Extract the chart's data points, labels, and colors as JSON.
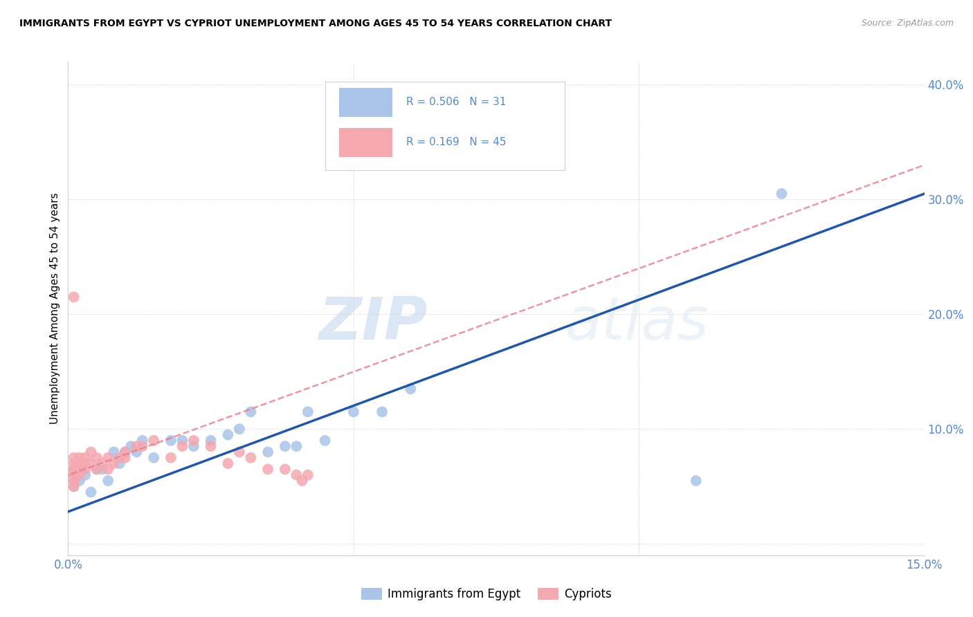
{
  "title": "IMMIGRANTS FROM EGYPT VS CYPRIOT UNEMPLOYMENT AMONG AGES 45 TO 54 YEARS CORRELATION CHART",
  "source": "Source: ZipAtlas.com",
  "tick_color": "#5588cc",
  "ylabel": "Unemployment Among Ages 45 to 54 years",
  "xlim": [
    0.0,
    0.15
  ],
  "ylim": [
    -0.01,
    0.42
  ],
  "legend_R_blue": "0.506",
  "legend_N_blue": "31",
  "legend_R_pink": "0.169",
  "legend_N_pink": "45",
  "blue_color": "#aac4e8",
  "pink_color": "#f4a8b0",
  "blue_line_color": "#2255aa",
  "pink_line_color": "#e87a8a",
  "watermark_zip": "ZIP",
  "watermark_atlas": "atlas",
  "blue_scatter_x": [
    0.001,
    0.002,
    0.003,
    0.004,
    0.005,
    0.006,
    0.007,
    0.008,
    0.009,
    0.01,
    0.011,
    0.012,
    0.013,
    0.015,
    0.018,
    0.02,
    0.022,
    0.025,
    0.028,
    0.03,
    0.032,
    0.035,
    0.038,
    0.04,
    0.042,
    0.045,
    0.05,
    0.055,
    0.06,
    0.11,
    0.125
  ],
  "blue_scatter_y": [
    0.05,
    0.055,
    0.06,
    0.045,
    0.065,
    0.065,
    0.055,
    0.08,
    0.07,
    0.08,
    0.085,
    0.08,
    0.09,
    0.075,
    0.09,
    0.09,
    0.085,
    0.09,
    0.095,
    0.1,
    0.115,
    0.08,
    0.085,
    0.085,
    0.115,
    0.09,
    0.115,
    0.115,
    0.135,
    0.055,
    0.305
  ],
  "pink_scatter_x": [
    0.001,
    0.001,
    0.001,
    0.001,
    0.001,
    0.001,
    0.001,
    0.001,
    0.001,
    0.001,
    0.002,
    0.002,
    0.002,
    0.002,
    0.002,
    0.003,
    0.003,
    0.003,
    0.004,
    0.004,
    0.005,
    0.005,
    0.006,
    0.007,
    0.007,
    0.008,
    0.009,
    0.01,
    0.01,
    0.012,
    0.013,
    0.015,
    0.018,
    0.02,
    0.022,
    0.025,
    0.028,
    0.03,
    0.032,
    0.035,
    0.038,
    0.04,
    0.041,
    0.042,
    0.001
  ],
  "pink_scatter_y": [
    0.055,
    0.06,
    0.065,
    0.07,
    0.075,
    0.065,
    0.06,
    0.055,
    0.05,
    0.06,
    0.065,
    0.07,
    0.075,
    0.065,
    0.06,
    0.07,
    0.075,
    0.065,
    0.08,
    0.07,
    0.075,
    0.065,
    0.07,
    0.075,
    0.065,
    0.07,
    0.075,
    0.08,
    0.075,
    0.085,
    0.085,
    0.09,
    0.075,
    0.085,
    0.09,
    0.085,
    0.07,
    0.08,
    0.075,
    0.065,
    0.065,
    0.06,
    0.055,
    0.06,
    0.215
  ],
  "blue_trendline_x": [
    0.0,
    0.15
  ],
  "blue_trendline_y": [
    0.028,
    0.305
  ],
  "pink_trendline_x": [
    -0.001,
    0.15
  ],
  "pink_trendline_y": [
    0.058,
    0.33
  ],
  "x_tick_positions": [
    0.0,
    0.05,
    0.1,
    0.15
  ],
  "x_tick_labels": [
    "0.0%",
    "",
    "",
    "15.0%"
  ],
  "y_tick_positions": [
    0.0,
    0.1,
    0.2,
    0.3,
    0.4
  ],
  "y_tick_labels": [
    "",
    "10.0%",
    "20.0%",
    "30.0%",
    "40.0%"
  ]
}
